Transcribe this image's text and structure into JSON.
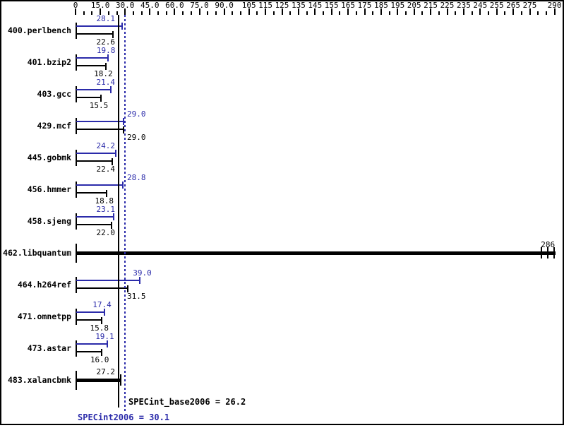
{
  "colors": {
    "peak_blue": "#2b2baa",
    "base_black": "#000000",
    "background": "#ffffff",
    "border": "#000000"
  },
  "axis": {
    "min": 0,
    "max": 290,
    "minor_step": 5,
    "ticks": [
      {
        "label": "0",
        "value": 0
      },
      {
        "label": "15.0",
        "value": 15
      },
      {
        "label": "30.0",
        "value": 30
      },
      {
        "label": "45.0",
        "value": 45
      },
      {
        "label": "60.0",
        "value": 60
      },
      {
        "label": "75.0",
        "value": 75
      },
      {
        "label": "90.0",
        "value": 90
      },
      {
        "label": "105",
        "value": 105
      },
      {
        "label": "115",
        "value": 115
      },
      {
        "label": "125",
        "value": 125
      },
      {
        "label": "135",
        "value": 135
      },
      {
        "label": "145",
        "value": 145
      },
      {
        "label": "155",
        "value": 155
      },
      {
        "label": "165",
        "value": 165
      },
      {
        "label": "175",
        "value": 175
      },
      {
        "label": "185",
        "value": 185
      },
      {
        "label": "195",
        "value": 195
      },
      {
        "label": "205",
        "value": 205
      },
      {
        "label": "215",
        "value": 215
      },
      {
        "label": "225",
        "value": 225
      },
      {
        "label": "235",
        "value": 235
      },
      {
        "label": "245",
        "value": 245
      },
      {
        "label": "255",
        "value": 255
      },
      {
        "label": "265",
        "value": 265
      },
      {
        "label": "275",
        "value": 275
      },
      {
        "label": "290",
        "value": 290
      }
    ]
  },
  "means": {
    "base_label": "SPECint_base2006 = 26.2",
    "base_value": 26.2,
    "peak_label": "SPECint2006 = 30.1",
    "peak_value": 30.1
  },
  "chart_data": {
    "type": "bar",
    "orientation": "horizontal",
    "xlabel": "",
    "ylabel": "",
    "xlim": [
      0,
      290
    ],
    "grid": false,
    "legend": "none",
    "categories": [
      "400.perlbench",
      "401.bzip2",
      "403.gcc",
      "429.mcf",
      "445.gobmk",
      "456.hmmer",
      "458.sjeng",
      "462.libquantum",
      "464.h264ref",
      "471.omnetpp",
      "473.astar",
      "483.xalancbmk"
    ],
    "series": [
      {
        "name": "peak",
        "color": "#2b2baa",
        "values": [
          28.1,
          19.8,
          21.4,
          29.0,
          24.2,
          28.8,
          23.1,
          null,
          39.0,
          17.4,
          19.1,
          null
        ]
      },
      {
        "name": "base",
        "color": "#000000",
        "values": [
          22.6,
          18.2,
          15.5,
          29.0,
          22.4,
          18.8,
          22.0,
          286,
          31.5,
          15.8,
          16.0,
          27.2
        ]
      }
    ],
    "benchmarks": [
      {
        "name": "400.perlbench",
        "style": "pair",
        "peak": 28.1,
        "base": 22.6,
        "peak_label": "28.1",
        "base_label": "22.6"
      },
      {
        "name": "401.bzip2",
        "style": "pair",
        "peak": 19.8,
        "base": 18.2,
        "peak_label": "19.8",
        "base_label": "18.2"
      },
      {
        "name": "403.gcc",
        "style": "pair",
        "peak": 21.4,
        "base": 15.5,
        "peak_label": "21.4",
        "base_label": "15.5"
      },
      {
        "name": "429.mcf",
        "style": "pair",
        "peak": 29.0,
        "base": 29.0,
        "peak_label": "29.0",
        "base_label": "29.0"
      },
      {
        "name": "445.gobmk",
        "style": "pair",
        "peak": 24.2,
        "base": 22.4,
        "peak_label": "24.2",
        "base_label": "22.4"
      },
      {
        "name": "456.hmmer",
        "style": "pair",
        "peak": 28.8,
        "base": 18.8,
        "peak_label": "28.8",
        "base_label": "18.8"
      },
      {
        "name": "458.sjeng",
        "style": "pair",
        "peak": 23.1,
        "base": 22.0,
        "peak_label": "23.1",
        "base_label": "22.0"
      },
      {
        "name": "462.libquantum",
        "style": "single",
        "value": 286,
        "label": "286",
        "end_caps": 3
      },
      {
        "name": "464.h264ref",
        "style": "pair",
        "peak": 39.0,
        "base": 31.5,
        "peak_label": "39.0",
        "base_label": "31.5"
      },
      {
        "name": "471.omnetpp",
        "style": "pair",
        "peak": 17.4,
        "base": 15.8,
        "peak_label": "17.4",
        "base_label": "15.8"
      },
      {
        "name": "473.astar",
        "style": "pair",
        "peak": 19.1,
        "base": 16.0,
        "peak_label": "19.1",
        "base_label": "16.0"
      },
      {
        "name": "483.xalancbmk",
        "style": "single",
        "value": 27.2,
        "label": "27.2",
        "end_caps": 1
      }
    ]
  }
}
